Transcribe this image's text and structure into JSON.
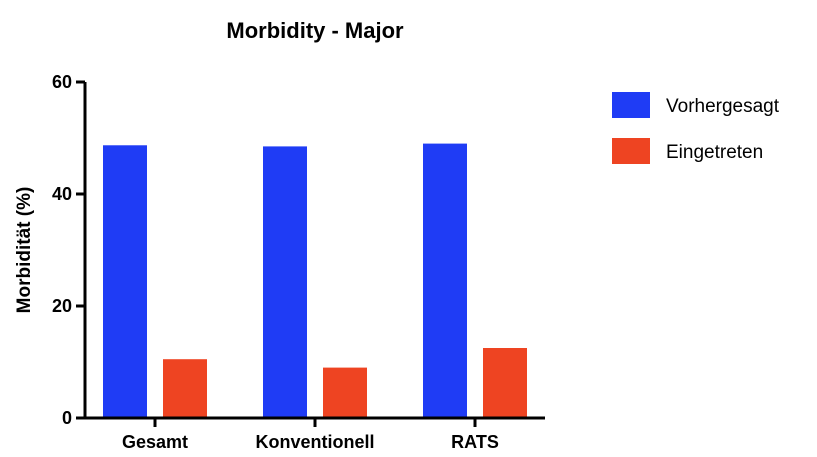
{
  "chart_data": {
    "type": "bar",
    "title": "Morbidity - Major",
    "xlabel": "",
    "ylabel": "Morbidität (%)",
    "ylim": [
      0,
      60
    ],
    "yticks": [
      0,
      20,
      40,
      60
    ],
    "categories": [
      "Gesamt",
      "Konventionell",
      "RATS"
    ],
    "series": [
      {
        "name": "Vorhergesagt",
        "color": "#1f3cf5",
        "values": [
          48.7,
          48.5,
          49.0
        ]
      },
      {
        "name": "Eingetreten",
        "color": "#ee4422",
        "values": [
          10.5,
          9.0,
          12.5
        ]
      }
    ],
    "grid": false,
    "legend_position": "right"
  }
}
